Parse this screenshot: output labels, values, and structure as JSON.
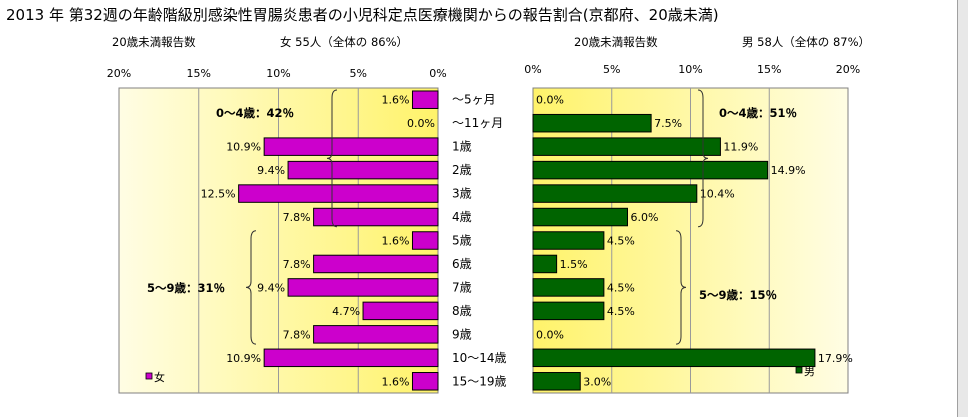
{
  "title": "2013 年 第32週の年齢階級別感染性胃腸炎患者の小児科定点医療機関からの報告割合(京都府、20歳未満)",
  "female": {
    "subtitle_label": "20歳未満報告数",
    "subtitle_count": "女  55人（全体の  86%）",
    "legend": "女",
    "color": "#cc00cc",
    "group_0_4": "0～4歳：42％",
    "group_5_9": "5～9歳：31％"
  },
  "male": {
    "subtitle_label": "20歳未満報告数",
    "subtitle_count": "男  58人（全体の  87%）",
    "legend": "男",
    "color": "#006400",
    "group_0_4": "0～4歳：51％",
    "group_5_9": "5～9歳：15％"
  },
  "chart_data": {
    "type": "bar",
    "orientation": "horizontal",
    "categories": [
      "～5ヶ月",
      "～11ヶ月",
      "1歳",
      "2歳",
      "3歳",
      "4歳",
      "5歳",
      "6歳",
      "7歳",
      "8歳",
      "9歳",
      "10～14歳",
      "15～19歳"
    ],
    "series": [
      {
        "name": "女",
        "values": [
          1.6,
          0.0,
          10.9,
          9.4,
          12.5,
          7.8,
          1.6,
          7.8,
          9.4,
          4.7,
          7.8,
          10.9,
          1.6
        ]
      },
      {
        "name": "男",
        "values": [
          0.0,
          7.5,
          11.9,
          14.9,
          10.4,
          6.0,
          4.5,
          1.5,
          4.5,
          4.5,
          0.0,
          17.9,
          3.0
        ]
      }
    ],
    "x_ticks": [
      "0%",
      "5%",
      "10%",
      "15%",
      "20%"
    ],
    "xlim": [
      0,
      20
    ],
    "value_suffix": "%",
    "grid": true,
    "legend_position": "bottom"
  }
}
